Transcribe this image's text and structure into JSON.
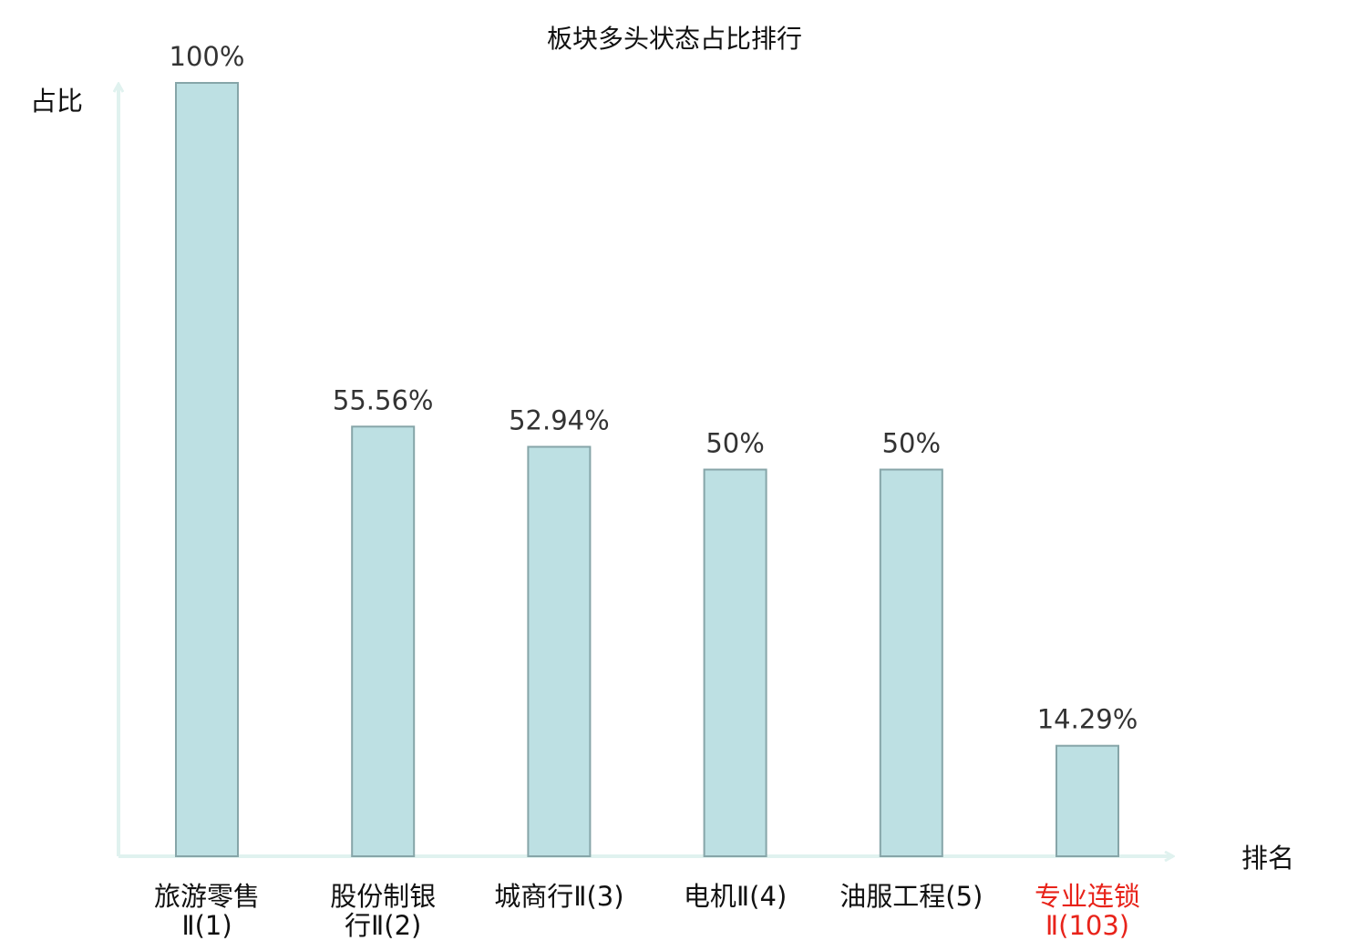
{
  "chart_data": {
    "type": "bar",
    "title": "板块多头状态占比排行",
    "ylabel": "占比",
    "xlabel": "排名",
    "ylim": [
      0,
      100
    ],
    "grid": false,
    "categories": [
      {
        "name_lines": [
          "旅游零售"
        ],
        "rank_line": "Ⅱ(1)",
        "highlight": false
      },
      {
        "name_lines": [
          "股份制银"
        ],
        "rank_line": "行Ⅱ(2)",
        "highlight": false
      },
      {
        "name_lines": [
          "城商行Ⅱ(3)"
        ],
        "rank_line": "",
        "highlight": false
      },
      {
        "name_lines": [
          "电机Ⅱ(4)"
        ],
        "rank_line": "",
        "highlight": false
      },
      {
        "name_lines": [
          "油服工程(5)"
        ],
        "rank_line": "",
        "highlight": false
      },
      {
        "name_lines": [
          "专业连锁"
        ],
        "rank_line": "Ⅱ(103)",
        "highlight": true
      }
    ],
    "values": [
      100,
      55.56,
      52.94,
      50,
      50,
      14.29
    ],
    "value_labels": [
      "100%",
      "55.56%",
      "52.94%",
      "50%",
      "50%",
      "14.29%"
    ]
  },
  "colors": {
    "bar_fill": "#bde0e3",
    "bar_stroke": "#86a5a8",
    "axis": "#e0f2ef",
    "label_text": "#333333",
    "title_text": "#111111",
    "highlight_text": "#e8231a"
  }
}
